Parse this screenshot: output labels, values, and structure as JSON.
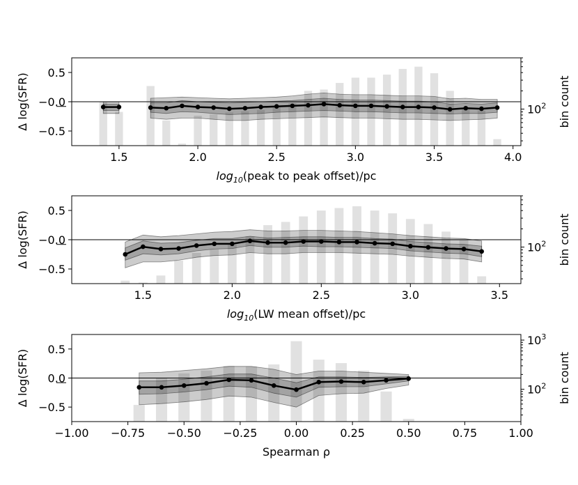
{
  "chart_data": [
    {
      "type": "bar+line",
      "title": "",
      "xlabel": "log10(peak to peak offset)/pc",
      "xlabel_parts": {
        "prefix": "log",
        "sub": "10",
        "rest": "(peak to peak offset)/pc"
      },
      "ylabel": "Δ log(SFR)",
      "ylabel_right": "bin count",
      "xlim": [
        1.2,
        4.05
      ],
      "ylim": [
        -0.75,
        0.75
      ],
      "xticks": [
        "1.5",
        "2.0",
        "2.5",
        "3.0",
        "3.5",
        "4.0"
      ],
      "xtick_values": [
        1.5,
        2.0,
        2.5,
        3.0,
        3.5,
        4.0
      ],
      "yticks": [
        "0.5",
        "−0.0",
        "−0.5"
      ],
      "ytick_values": [
        0.5,
        0.0,
        -0.5
      ],
      "right_axis": {
        "scale": "log",
        "ylim": [
          25,
          700
        ],
        "tick_labels": [
          {
            "value": 100,
            "base": "10",
            "exp": "2"
          }
        ]
      },
      "bars": {
        "x": [
          1.4,
          1.5,
          1.7,
          1.8,
          1.9,
          2.0,
          2.1,
          2.2,
          2.3,
          2.4,
          2.5,
          2.6,
          2.7,
          2.8,
          2.9,
          3.0,
          3.1,
          3.2,
          3.3,
          3.4,
          3.5,
          3.6,
          3.7,
          3.8,
          3.9
        ],
        "counts": [
          130,
          90,
          240,
          65,
          27,
          78,
          82,
          88,
          92,
          97,
          110,
          125,
          200,
          210,
          270,
          330,
          330,
          370,
          460,
          500,
          390,
          200,
          100,
          95,
          32
        ]
      },
      "segments": [
        {
          "x": [
            1.4,
            1.5
          ],
          "median": [
            -0.09,
            -0.09
          ],
          "inner_lo": [
            -0.15,
            -0.15
          ],
          "inner_hi": [
            -0.04,
            -0.04
          ],
          "outer_lo": [
            -0.2,
            -0.2
          ],
          "outer_hi": [
            0.0,
            0.0
          ]
        },
        {
          "x": [
            1.7,
            1.8,
            1.9,
            2.0,
            2.1,
            2.2,
            2.3,
            2.4,
            2.5,
            2.6,
            2.7,
            2.8,
            2.9,
            3.0,
            3.1,
            3.2,
            3.3,
            3.4,
            3.5,
            3.6,
            3.7,
            3.8,
            3.9
          ],
          "median": [
            -0.1,
            -0.11,
            -0.07,
            -0.09,
            -0.1,
            -0.12,
            -0.11,
            -0.09,
            -0.08,
            -0.07,
            -0.06,
            -0.04,
            -0.06,
            -0.07,
            -0.07,
            -0.08,
            -0.09,
            -0.09,
            -0.1,
            -0.13,
            -0.11,
            -0.12,
            -0.1
          ],
          "inner_lo": [
            -0.18,
            -0.2,
            -0.17,
            -0.18,
            -0.2,
            -0.22,
            -0.21,
            -0.2,
            -0.18,
            -0.17,
            -0.16,
            -0.15,
            -0.16,
            -0.17,
            -0.17,
            -0.18,
            -0.19,
            -0.19,
            -0.2,
            -0.21,
            -0.2,
            -0.2,
            -0.18
          ],
          "inner_hi": [
            -0.02,
            -0.02,
            0.02,
            0.0,
            -0.01,
            -0.02,
            -0.01,
            0.0,
            0.01,
            0.02,
            0.04,
            0.06,
            0.04,
            0.03,
            0.03,
            0.02,
            0.01,
            0.01,
            0.0,
            -0.04,
            -0.03,
            -0.04,
            -0.02
          ],
          "outer_lo": [
            -0.28,
            -0.3,
            -0.28,
            -0.28,
            -0.3,
            -0.32,
            -0.32,
            -0.3,
            -0.29,
            -0.28,
            -0.27,
            -0.26,
            -0.27,
            -0.28,
            -0.28,
            -0.29,
            -0.3,
            -0.3,
            -0.31,
            -0.32,
            -0.31,
            -0.3,
            -0.28
          ],
          "outer_hi": [
            0.06,
            0.07,
            0.08,
            0.07,
            0.06,
            0.05,
            0.06,
            0.07,
            0.08,
            0.1,
            0.13,
            0.15,
            0.13,
            0.12,
            0.12,
            0.11,
            0.1,
            0.1,
            0.09,
            0.05,
            0.06,
            0.04,
            0.04
          ]
        }
      ]
    },
    {
      "type": "bar+line",
      "title": "",
      "xlabel": "log10(LW mean offset)/pc",
      "xlabel_parts": {
        "prefix": "log",
        "sub": "10",
        "rest": "(LW mean offset)/pc"
      },
      "ylabel": "Δ log(SFR)",
      "ylabel_right": "bin count",
      "xlim": [
        1.1,
        3.62
      ],
      "ylim": [
        -0.75,
        0.75
      ],
      "xticks": [
        "1.5",
        "2.0",
        "2.5",
        "3.0",
        "3.5"
      ],
      "xtick_values": [
        1.5,
        2.0,
        2.5,
        3.0,
        3.5
      ],
      "yticks": [
        "0.5",
        "−0.0",
        "−0.5"
      ],
      "ytick_values": [
        0.5,
        0.0,
        -0.5
      ],
      "right_axis": {
        "scale": "log",
        "ylim": [
          25,
          700
        ],
        "tick_labels": [
          {
            "value": 100,
            "base": "10",
            "exp": "2"
          }
        ]
      },
      "bars": {
        "x": [
          1.4,
          1.5,
          1.6,
          1.7,
          1.8,
          1.9,
          2.0,
          2.1,
          2.2,
          2.3,
          2.4,
          2.5,
          2.6,
          2.7,
          2.8,
          2.9,
          3.0,
          3.1,
          3.2,
          3.3,
          3.4
        ],
        "counts": [
          28,
          26,
          34,
          60,
          80,
          92,
          110,
          150,
          230,
          260,
          320,
          400,
          440,
          470,
          400,
          360,
          290,
          240,
          180,
          130,
          33
        ]
      },
      "segments": [
        {
          "x": [
            1.4,
            1.5,
            1.6,
            1.7,
            1.8,
            1.9,
            2.0,
            2.1,
            2.2,
            2.3,
            2.4,
            2.5,
            2.6,
            2.7,
            2.8,
            2.9,
            3.0,
            3.1,
            3.2,
            3.3,
            3.4
          ],
          "median": [
            -0.25,
            -0.12,
            -0.16,
            -0.15,
            -0.1,
            -0.07,
            -0.07,
            -0.02,
            -0.05,
            -0.05,
            -0.03,
            -0.03,
            -0.04,
            -0.04,
            -0.06,
            -0.07,
            -0.11,
            -0.13,
            -0.15,
            -0.16,
            -0.2
          ],
          "inner_lo": [
            -0.35,
            -0.24,
            -0.26,
            -0.24,
            -0.19,
            -0.16,
            -0.15,
            -0.1,
            -0.13,
            -0.13,
            -0.11,
            -0.12,
            -0.12,
            -0.13,
            -0.14,
            -0.15,
            -0.19,
            -0.21,
            -0.23,
            -0.24,
            -0.29
          ],
          "inner_hi": [
            -0.14,
            -0.02,
            -0.06,
            -0.05,
            -0.01,
            0.02,
            0.02,
            0.06,
            0.03,
            0.04,
            0.05,
            0.05,
            0.04,
            0.04,
            0.02,
            0.01,
            -0.03,
            -0.05,
            -0.07,
            -0.08,
            -0.11
          ],
          "outer_lo": [
            -0.48,
            -0.38,
            -0.38,
            -0.35,
            -0.3,
            -0.27,
            -0.26,
            -0.22,
            -0.24,
            -0.24,
            -0.22,
            -0.22,
            -0.22,
            -0.23,
            -0.24,
            -0.25,
            -0.28,
            -0.3,
            -0.32,
            -0.33,
            -0.38
          ],
          "outer_hi": [
            -0.04,
            0.08,
            0.05,
            0.07,
            0.1,
            0.13,
            0.14,
            0.17,
            0.15,
            0.15,
            0.16,
            0.16,
            0.15,
            0.14,
            0.12,
            0.1,
            0.07,
            0.05,
            0.03,
            0.02,
            -0.02
          ]
        }
      ]
    },
    {
      "type": "bar+line",
      "title": "",
      "xlabel": "Spearman ρ",
      "ylabel": "Δ log(SFR)",
      "ylabel_right": "bin count",
      "xlim": [
        -1.0,
        1.0
      ],
      "ylim": [
        -0.75,
        0.75
      ],
      "xticks": [
        "−1.00",
        "−0.75",
        "−0.50",
        "−0.25",
        "0.00",
        "0.25",
        "0.50",
        "0.75",
        "1.00"
      ],
      "xtick_values": [
        -1.0,
        -0.75,
        -0.5,
        -0.25,
        0.0,
        0.25,
        0.5,
        0.75,
        1.0
      ],
      "yticks": [
        "0.5",
        "0.0",
        "−0.5"
      ],
      "ytick_values": [
        0.5,
        0.0,
        -0.5
      ],
      "right_axis": {
        "scale": "log",
        "ylim": [
          22,
          1300
        ],
        "tick_labels": [
          {
            "value": 100,
            "base": "10",
            "exp": "2"
          },
          {
            "value": 1000,
            "base": "10",
            "exp": "3"
          }
        ]
      },
      "bars": {
        "x": [
          -0.7,
          -0.6,
          -0.5,
          -0.4,
          -0.3,
          -0.2,
          -0.1,
          0.0,
          0.1,
          0.2,
          0.3,
          0.4,
          0.5
        ],
        "counts": [
          48,
          170,
          210,
          240,
          300,
          290,
          320,
          950,
          400,
          340,
          240,
          90,
          25
        ]
      },
      "segments": [
        {
          "x": [
            -0.7,
            -0.6,
            -0.5,
            -0.4,
            -0.3,
            -0.2,
            -0.1,
            0.0,
            0.1,
            0.2,
            0.3,
            0.4,
            0.5
          ],
          "median": [
            -0.16,
            -0.16,
            -0.13,
            -0.09,
            -0.03,
            -0.04,
            -0.13,
            -0.2,
            -0.07,
            -0.06,
            -0.07,
            -0.04,
            -0.01
          ],
          "inner_lo": [
            -0.28,
            -0.27,
            -0.24,
            -0.2,
            -0.14,
            -0.16,
            -0.26,
            -0.33,
            -0.16,
            -0.15,
            -0.15,
            -0.1,
            -0.05
          ],
          "inner_hi": [
            -0.05,
            -0.05,
            -0.02,
            0.02,
            0.07,
            0.07,
            0.0,
            -0.08,
            0.02,
            0.02,
            0.01,
            0.02,
            0.03
          ],
          "outer_lo": [
            -0.46,
            -0.44,
            -0.41,
            -0.37,
            -0.31,
            -0.33,
            -0.42,
            -0.5,
            -0.3,
            -0.27,
            -0.26,
            -0.18,
            -0.12
          ],
          "outer_hi": [
            0.09,
            0.1,
            0.13,
            0.16,
            0.2,
            0.2,
            0.15,
            0.06,
            0.12,
            0.12,
            0.1,
            0.08,
            0.06
          ]
        }
      ]
    }
  ]
}
